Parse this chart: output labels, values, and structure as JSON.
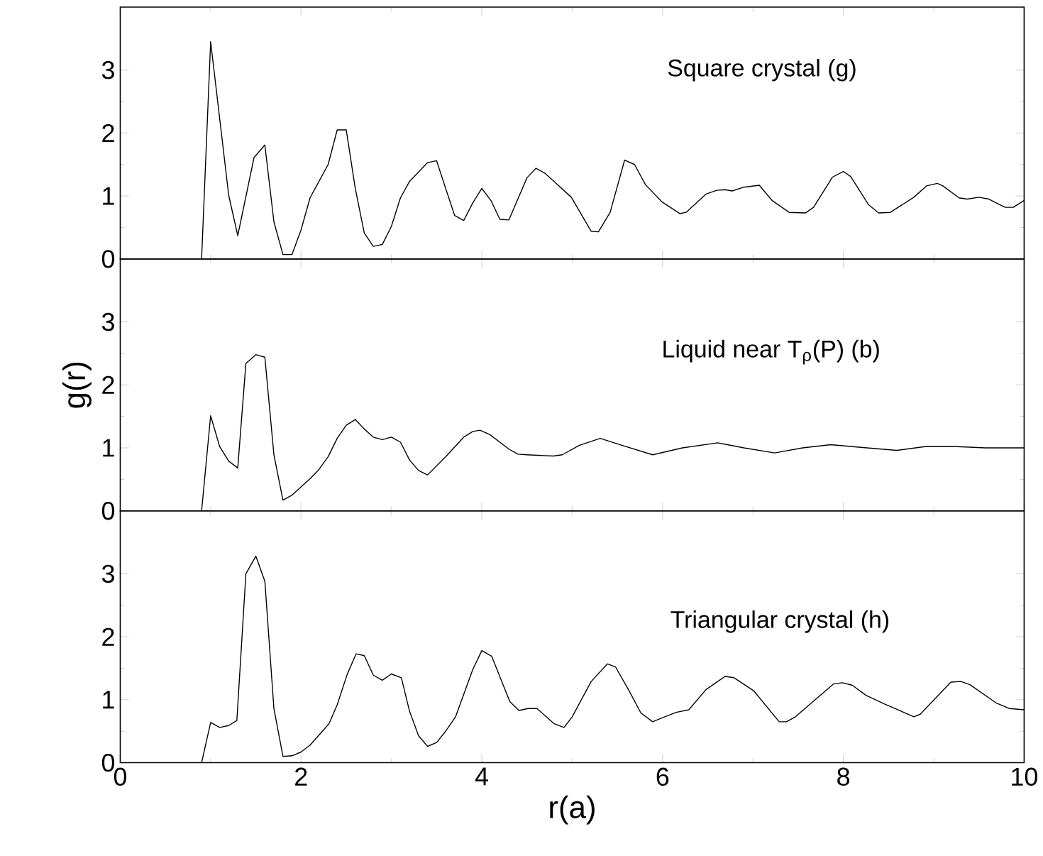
{
  "chart_data": [
    {
      "type": "line",
      "color": "#000000",
      "annotations": [
        "Square crystal  (g)"
      ],
      "tick_labels": "y",
      "xlim": [
        0,
        10
      ],
      "ylim": [
        0,
        4
      ],
      "xticks": [
        0,
        2,
        4,
        6,
        8,
        10
      ],
      "yticks": [
        0,
        1,
        2,
        3
      ],
      "x": [
        0,
        0.9,
        1.0,
        1.2,
        1.3,
        1.48,
        1.6,
        1.7,
        1.8,
        1.9,
        2.0,
        2.1,
        2.3,
        2.4,
        2.5,
        2.6,
        2.7,
        2.8,
        2.9,
        3.0,
        3.1,
        3.2,
        3.4,
        3.5,
        3.6,
        3.7,
        3.8,
        3.9,
        4.0,
        4.1,
        4.2,
        4.3,
        4.5,
        4.6,
        4.7,
        4.8,
        4.99,
        5.21,
        5.29,
        5.42,
        5.58,
        5.69,
        5.81,
        5.99,
        6.19,
        6.26,
        6.48,
        6.6,
        6.69,
        6.77,
        6.9,
        7.07,
        7.21,
        7.4,
        7.58,
        7.67,
        7.88,
        8.0,
        8.08,
        8.28,
        8.39,
        8.52,
        8.78,
        8.92,
        9.04,
        9.1,
        9.28,
        9.37,
        9.5,
        9.61,
        9.79,
        9.88,
        10.0
      ],
      "values": [
        0,
        0,
        3.45,
        1.01,
        0.37,
        1.61,
        1.81,
        0.59,
        0.07,
        0.07,
        0.46,
        0.97,
        1.5,
        2.05,
        2.05,
        1.12,
        0.41,
        0.2,
        0.23,
        0.52,
        0.97,
        1.23,
        1.53,
        1.56,
        1.12,
        0.69,
        0.61,
        0.89,
        1.12,
        0.93,
        0.63,
        0.62,
        1.29,
        1.44,
        1.36,
        1.23,
        0.98,
        0.44,
        0.43,
        0.74,
        1.57,
        1.5,
        1.18,
        0.91,
        0.72,
        0.74,
        1.03,
        1.09,
        1.1,
        1.08,
        1.14,
        1.17,
        0.93,
        0.74,
        0.73,
        0.82,
        1.3,
        1.39,
        1.31,
        0.86,
        0.73,
        0.74,
        0.98,
        1.16,
        1.2,
        1.16,
        0.97,
        0.95,
        0.98,
        0.95,
        0.82,
        0.82,
        0.93
      ]
    },
    {
      "type": "line",
      "color": "#000000",
      "ylabel": "g(r)",
      "annotations": [
        "Liquid near T$_{ρ}$(P) (b)"
      ],
      "tick_labels": "y",
      "xlim": [
        0,
        10
      ],
      "ylim": [
        0,
        4
      ],
      "xticks": [
        0,
        2,
        4,
        6,
        8,
        10
      ],
      "yticks": [
        0,
        1,
        2,
        3
      ],
      "x": [
        0,
        0.9,
        1.0,
        1.1,
        1.2,
        1.3,
        1.39,
        1.5,
        1.6,
        1.7,
        1.8,
        1.9,
        2.1,
        2.2,
        2.3,
        2.4,
        2.5,
        2.6,
        2.7,
        2.8,
        2.9,
        3.0,
        3.1,
        3.2,
        3.3,
        3.4,
        3.6,
        3.8,
        3.9,
        3.98,
        4.09,
        4.3,
        4.4,
        4.5,
        4.79,
        4.89,
        5.08,
        5.31,
        5.55,
        5.89,
        6.22,
        6.61,
        6.9,
        7.24,
        7.55,
        7.86,
        8.26,
        8.59,
        8.9,
        9.26,
        9.57,
        10.0
      ],
      "values": [
        0,
        0,
        1.51,
        1.02,
        0.79,
        0.68,
        2.34,
        2.48,
        2.44,
        0.89,
        0.17,
        0.25,
        0.51,
        0.66,
        0.86,
        1.15,
        1.36,
        1.45,
        1.3,
        1.17,
        1.13,
        1.17,
        1.09,
        0.81,
        0.64,
        0.57,
        0.86,
        1.17,
        1.26,
        1.28,
        1.21,
        0.98,
        0.9,
        0.89,
        0.87,
        0.89,
        1.04,
        1.15,
        1.04,
        0.89,
        1.0,
        1.08,
        1.0,
        0.92,
        1.0,
        1.05,
        1.0,
        0.96,
        1.02,
        1.02,
        1.0,
        1.0
      ]
    },
    {
      "type": "line",
      "color": "#000000",
      "xlabel": "r(a)",
      "annotations": [
        "Triangular crystal  (h)"
      ],
      "xlim": [
        0,
        10
      ],
      "ylim": [
        0,
        4
      ],
      "xticks": [
        0,
        2,
        4,
        6,
        8,
        10
      ],
      "yticks": [
        0,
        1,
        2,
        3
      ],
      "x": [
        0,
        0.9,
        1.0,
        1.1,
        1.2,
        1.29,
        1.39,
        1.5,
        1.6,
        1.7,
        1.8,
        1.9,
        2.0,
        2.1,
        2.2,
        2.31,
        2.4,
        2.51,
        2.61,
        2.7,
        2.8,
        2.9,
        3.0,
        3.11,
        3.2,
        3.3,
        3.4,
        3.5,
        3.6,
        3.71,
        3.9,
        4.0,
        4.11,
        4.31,
        4.41,
        4.51,
        4.61,
        4.8,
        4.91,
        5.0,
        5.21,
        5.39,
        5.48,
        5.63,
        5.76,
        5.89,
        5.99,
        6.15,
        6.29,
        6.48,
        6.69,
        6.79,
        7.01,
        7.29,
        7.37,
        7.47,
        7.89,
        7.99,
        8.1,
        8.25,
        8.46,
        8.78,
        8.85,
        9.19,
        9.3,
        9.4,
        9.69,
        9.84,
        10.0
      ],
      "values": [
        0,
        0,
        0.64,
        0.56,
        0.59,
        0.67,
        3.0,
        3.28,
        2.88,
        0.86,
        0.1,
        0.11,
        0.17,
        0.28,
        0.44,
        0.62,
        0.92,
        1.4,
        1.73,
        1.7,
        1.39,
        1.31,
        1.41,
        1.35,
        0.82,
        0.43,
        0.26,
        0.32,
        0.5,
        0.73,
        1.48,
        1.78,
        1.69,
        0.97,
        0.83,
        0.86,
        0.86,
        0.62,
        0.56,
        0.73,
        1.29,
        1.57,
        1.52,
        1.14,
        0.79,
        0.65,
        0.71,
        0.8,
        0.84,
        1.16,
        1.37,
        1.35,
        1.14,
        0.65,
        0.65,
        0.73,
        1.25,
        1.27,
        1.23,
        1.07,
        0.93,
        0.73,
        0.77,
        1.28,
        1.29,
        1.24,
        0.95,
        0.86,
        0.84
      ]
    }
  ]
}
